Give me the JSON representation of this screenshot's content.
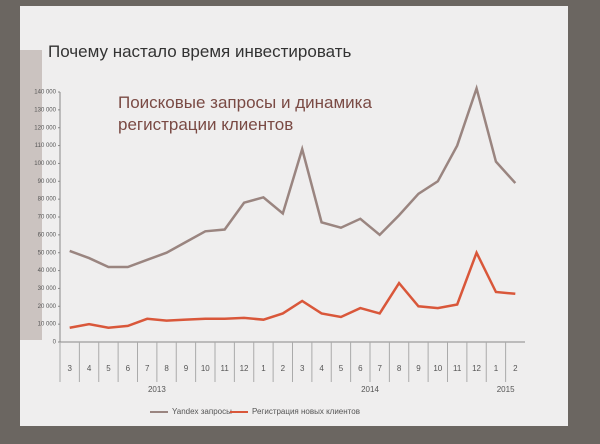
{
  "slide_title": "Почему настало время инвестировать",
  "chart_data": {
    "type": "line",
    "title": "Поисковые запросы и динамика регистрации клиентов",
    "categories": [
      "3",
      "4",
      "5",
      "6",
      "7",
      "8",
      "9",
      "10",
      "11",
      "12",
      "1",
      "2",
      "3",
      "4",
      "5",
      "6",
      "7",
      "8",
      "9",
      "10",
      "11",
      "12",
      "1",
      "2"
    ],
    "years": [
      "2013",
      "2014",
      "2015"
    ],
    "series": [
      {
        "name": "Yandex запросы",
        "color": "#9a8580",
        "values": [
          51000,
          47000,
          42000,
          42000,
          46000,
          50000,
          56000,
          62000,
          63000,
          78000,
          81000,
          72000,
          108000,
          67000,
          64000,
          69000,
          60000,
          71000,
          83000,
          90000,
          110000,
          142000,
          101000,
          89000
        ]
      },
      {
        "name": "Регистрация новых клиентов",
        "color": "#d9573a",
        "values": [
          8000,
          10000,
          8000,
          9000,
          13000,
          12000,
          12500,
          13000,
          13000,
          13500,
          12500,
          16000,
          23000,
          16000,
          14000,
          19000,
          16000,
          33000,
          20000,
          19000,
          21000,
          50000,
          28000,
          27000
        ]
      }
    ],
    "ylim": [
      0,
      140000
    ],
    "yticks": [
      0,
      {
        "value": 10000,
        "label": "10 000"
      },
      {
        "value": 20000,
        "label": "20 000"
      },
      {
        "value": 30000,
        "label": "30 000"
      },
      {
        "value": 40000,
        "label": "40 000"
      },
      {
        "value": 50000,
        "label": "50 000"
      },
      {
        "value": 60000,
        "label": "60 000"
      },
      {
        "value": 70000,
        "label": "70 000"
      },
      {
        "value": 80000,
        "label": "80 000"
      },
      {
        "value": 90000,
        "label": "90 000"
      },
      {
        "value": 100000,
        "label": "100 000"
      },
      {
        "value": 110000,
        "label": "110 000"
      },
      {
        "value": 120000,
        "label": "120 000"
      },
      {
        "value": 130000,
        "label": "130 000"
      },
      {
        "value": 140000,
        "label": "140 000"
      }
    ],
    "legend": "bottom"
  }
}
